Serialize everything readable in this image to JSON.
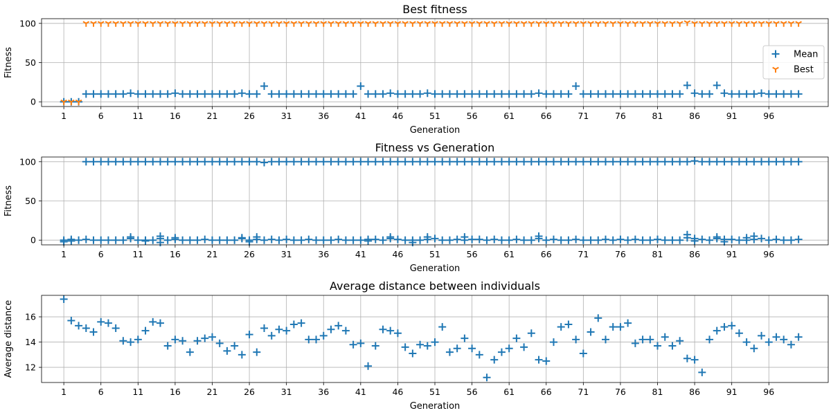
{
  "colors": {
    "mean": "#1f77b4",
    "best": "#ff7f0e",
    "grid": "#b0b0b0"
  },
  "chart_data": [
    {
      "type": "scatter",
      "title": "Best fitness",
      "xlabel": "Generation",
      "ylabel": "Fitness",
      "xticks": [
        1,
        6,
        11,
        16,
        21,
        26,
        31,
        36,
        41,
        46,
        51,
        56,
        61,
        66,
        71,
        76,
        81,
        86,
        91,
        96
      ],
      "yticks": [
        0,
        50,
        100
      ],
      "xlim": [
        -2,
        104
      ],
      "ylim": [
        -6,
        106
      ],
      "grid": true,
      "legend": "center-right",
      "series": [
        {
          "name": "Mean",
          "marker": "plus",
          "x": [
            1,
            2,
            3,
            4,
            5,
            6,
            7,
            8,
            9,
            10,
            11,
            12,
            13,
            14,
            15,
            16,
            17,
            18,
            19,
            20,
            21,
            22,
            23,
            24,
            25,
            26,
            27,
            28,
            29,
            30,
            31,
            32,
            33,
            34,
            35,
            36,
            37,
            38,
            39,
            40,
            41,
            42,
            43,
            44,
            45,
            46,
            47,
            48,
            49,
            50,
            51,
            52,
            53,
            54,
            55,
            56,
            57,
            58,
            59,
            60,
            61,
            62,
            63,
            64,
            65,
            66,
            67,
            68,
            69,
            70,
            71,
            72,
            73,
            74,
            75,
            76,
            77,
            78,
            79,
            80,
            81,
            82,
            83,
            84,
            85,
            86,
            87,
            88,
            89,
            90,
            91,
            92,
            93,
            94,
            95,
            96,
            97,
            98,
            99,
            100
          ],
          "y": [
            0,
            0,
            0,
            10,
            10,
            10,
            10,
            10,
            10,
            11,
            10,
            10,
            10,
            10,
            10,
            11,
            10,
            10,
            10,
            10,
            10,
            10,
            10,
            10,
            11,
            10,
            10,
            20,
            10,
            10,
            10,
            10,
            10,
            10,
            10,
            10,
            10,
            10,
            10,
            10,
            20,
            10,
            10,
            10,
            11,
            10,
            10,
            10,
            10,
            11,
            10,
            10,
            10,
            10,
            10,
            10,
            10,
            10,
            10,
            10,
            10,
            10,
            10,
            10,
            11,
            10,
            10,
            10,
            10,
            20,
            10,
            10,
            10,
            10,
            10,
            10,
            10,
            10,
            10,
            10,
            10,
            10,
            10,
            10,
            21,
            11,
            10,
            10,
            21,
            11,
            10,
            10,
            10,
            10,
            11,
            10,
            10,
            10,
            10,
            10
          ]
        },
        {
          "name": "Best",
          "marker": "tri_down",
          "x": [
            1,
            2,
            3,
            4,
            5,
            6,
            7,
            8,
            9,
            10,
            11,
            12,
            13,
            14,
            15,
            16,
            17,
            18,
            19,
            20,
            21,
            22,
            23,
            24,
            25,
            26,
            27,
            28,
            29,
            30,
            31,
            32,
            33,
            34,
            35,
            36,
            37,
            38,
            39,
            40,
            41,
            42,
            43,
            44,
            45,
            46,
            47,
            48,
            49,
            50,
            51,
            52,
            53,
            54,
            55,
            56,
            57,
            58,
            59,
            60,
            61,
            62,
            63,
            64,
            65,
            66,
            67,
            68,
            69,
            70,
            71,
            72,
            73,
            74,
            75,
            76,
            77,
            78,
            79,
            80,
            81,
            82,
            83,
            84,
            85,
            86,
            87,
            88,
            89,
            90,
            91,
            92,
            93,
            94,
            95,
            96,
            97,
            98,
            99,
            100
          ],
          "y": [
            0,
            0,
            0,
            100,
            100,
            100,
            100,
            100,
            100,
            100,
            100,
            100,
            100,
            100,
            100,
            100,
            100,
            100,
            100,
            100,
            100,
            100,
            100,
            100,
            100,
            100,
            100,
            100,
            100,
            100,
            100,
            100,
            100,
            100,
            100,
            100,
            100,
            100,
            100,
            100,
            100,
            100,
            100,
            100,
            100,
            100,
            100,
            100,
            100,
            100,
            100,
            100,
            100,
            100,
            100,
            100,
            100,
            100,
            100,
            100,
            100,
            100,
            100,
            100,
            100,
            100,
            100,
            100,
            100,
            100,
            100,
            100,
            100,
            100,
            100,
            100,
            100,
            100,
            100,
            100,
            100,
            100,
            100,
            100,
            101,
            100,
            100,
            100,
            100,
            100,
            100,
            100,
            100,
            100,
            100,
            100,
            100,
            100,
            100,
            100
          ]
        }
      ]
    },
    {
      "type": "scatter",
      "title": "Fitness vs Generation",
      "xlabel": "Generation",
      "ylabel": "Fitness",
      "xticks": [
        1,
        6,
        11,
        16,
        21,
        26,
        31,
        36,
        41,
        46,
        51,
        56,
        61,
        66,
        71,
        76,
        81,
        86,
        91,
        96
      ],
      "yticks": [
        0,
        50,
        100
      ],
      "xlim": [
        -2,
        104
      ],
      "ylim": [
        -6,
        106
      ],
      "grid": true,
      "series": [
        {
          "marker": "plus",
          "x": [
            1,
            2,
            3,
            4,
            5,
            6,
            7,
            8,
            9,
            10,
            11,
            12,
            13,
            14,
            15,
            16,
            17,
            18,
            19,
            20,
            21,
            22,
            23,
            24,
            25,
            26,
            27,
            28,
            29,
            30,
            31,
            32,
            33,
            34,
            35,
            36,
            37,
            38,
            39,
            40,
            41,
            42,
            43,
            44,
            45,
            46,
            47,
            48,
            49,
            50,
            51,
            52,
            53,
            54,
            55,
            56,
            57,
            58,
            59,
            60,
            61,
            62,
            63,
            64,
            65,
            66,
            67,
            68,
            69,
            70,
            71,
            72,
            73,
            74,
            75,
            76,
            77,
            78,
            79,
            80,
            81,
            82,
            83,
            84,
            85,
            86,
            87,
            88,
            89,
            90,
            91,
            92,
            93,
            94,
            95,
            96,
            97,
            98,
            99,
            100,
            4,
            5,
            6,
            7,
            8,
            9,
            10,
            11,
            12,
            13,
            14,
            15,
            16,
            17,
            18,
            19,
            20,
            21,
            22,
            23,
            24,
            25,
            26,
            27,
            28,
            29,
            30,
            31,
            32,
            33,
            34,
            35,
            36,
            37,
            38,
            39,
            40,
            41,
            42,
            43,
            44,
            45,
            46,
            47,
            48,
            49,
            50,
            51,
            52,
            53,
            54,
            55,
            56,
            57,
            58,
            59,
            60,
            61,
            62,
            63,
            64,
            65,
            66,
            67,
            68,
            69,
            70,
            71,
            72,
            73,
            74,
            75,
            76,
            77,
            78,
            79,
            80,
            81,
            82,
            83,
            84,
            85,
            86,
            87,
            88,
            89,
            90,
            91,
            92,
            93,
            94,
            95,
            96,
            97,
            98,
            99,
            100,
            10,
            14,
            16,
            25,
            27,
            45,
            50,
            55,
            65,
            85,
            89,
            93,
            94,
            1,
            2,
            12,
            14,
            26,
            42,
            48,
            86,
            90
          ],
          "y": [
            0,
            1,
            0,
            1,
            0,
            0,
            0,
            0,
            0,
            2,
            0,
            0,
            0,
            2,
            0,
            1,
            0,
            0,
            0,
            1,
            0,
            0,
            0,
            0,
            2,
            0,
            1,
            0,
            1,
            0,
            1,
            0,
            0,
            1,
            0,
            0,
            0,
            1,
            0,
            0,
            0,
            1,
            1,
            0,
            2,
            1,
            0,
            0,
            0,
            1,
            2,
            0,
            0,
            1,
            0,
            1,
            1,
            0,
            1,
            0,
            0,
            1,
            0,
            0,
            2,
            0,
            1,
            0,
            0,
            1,
            0,
            0,
            0,
            1,
            0,
            1,
            0,
            1,
            0,
            0,
            1,
            0,
            0,
            0,
            3,
            2,
            1,
            0,
            2,
            1,
            1,
            0,
            0,
            1,
            2,
            0,
            1,
            0,
            0,
            1,
            100,
            100,
            100,
            100,
            100,
            100,
            100,
            100,
            100,
            100,
            100,
            100,
            100,
            100,
            100,
            100,
            100,
            100,
            100,
            100,
            100,
            100,
            100,
            100,
            99,
            100,
            100,
            100,
            100,
            100,
            100,
            100,
            100,
            100,
            100,
            100,
            100,
            100,
            100,
            100,
            100,
            100,
            100,
            100,
            100,
            100,
            100,
            100,
            100,
            100,
            100,
            100,
            100,
            100,
            100,
            100,
            100,
            100,
            100,
            100,
            100,
            100,
            100,
            100,
            100,
            100,
            100,
            100,
            100,
            100,
            100,
            100,
            100,
            100,
            100,
            100,
            100,
            100,
            100,
            100,
            100,
            100,
            101,
            100,
            100,
            100,
            100,
            100,
            100,
            100,
            100,
            100,
            100,
            100,
            100,
            100,
            100,
            4,
            5,
            3,
            3,
            4,
            4,
            4,
            4,
            5,
            7,
            4,
            3,
            5,
            -2,
            -1,
            -1,
            -3,
            -2,
            -1,
            -3,
            -1,
            -2
          ]
        }
      ]
    },
    {
      "type": "scatter",
      "title": "Average distance between individuals",
      "xlabel": "Generation",
      "ylabel": "Average distance",
      "xticks": [
        1,
        6,
        11,
        16,
        21,
        26,
        31,
        36,
        41,
        46,
        51,
        56,
        61,
        66,
        71,
        76,
        81,
        86,
        91,
        96
      ],
      "yticks": [
        12,
        14,
        16
      ],
      "xlim": [
        -2,
        104
      ],
      "ylim": [
        10.8,
        17.7
      ],
      "grid": true,
      "series": [
        {
          "marker": "plus",
          "x": [
            1,
            2,
            3,
            4,
            5,
            6,
            7,
            8,
            9,
            10,
            11,
            12,
            13,
            14,
            15,
            16,
            17,
            18,
            19,
            20,
            21,
            22,
            23,
            24,
            25,
            26,
            27,
            28,
            29,
            30,
            31,
            32,
            33,
            34,
            35,
            36,
            37,
            38,
            39,
            40,
            41,
            42,
            43,
            44,
            45,
            46,
            47,
            48,
            49,
            50,
            51,
            52,
            53,
            54,
            55,
            56,
            57,
            58,
            59,
            60,
            61,
            62,
            63,
            64,
            65,
            66,
            67,
            68,
            69,
            70,
            71,
            72,
            73,
            74,
            75,
            76,
            77,
            78,
            79,
            80,
            81,
            82,
            83,
            84,
            85,
            86,
            87,
            88,
            89,
            90,
            91,
            92,
            93,
            94,
            95,
            96,
            97,
            98,
            99,
            100
          ],
          "y": [
            17.4,
            15.7,
            15.3,
            15.1,
            14.8,
            15.6,
            15.5,
            15.1,
            14.1,
            14.0,
            14.2,
            14.9,
            15.6,
            15.5,
            13.7,
            14.2,
            14.1,
            13.2,
            14.1,
            14.3,
            14.4,
            13.9,
            13.3,
            13.7,
            13.0,
            14.6,
            13.2,
            15.1,
            14.5,
            15.0,
            14.9,
            15.4,
            15.5,
            14.2,
            14.2,
            14.5,
            15.0,
            15.3,
            14.9,
            13.8,
            13.9,
            12.1,
            13.7,
            15.0,
            14.9,
            14.7,
            13.6,
            13.1,
            13.8,
            13.7,
            14.0,
            15.2,
            13.2,
            13.5,
            14.3,
            13.5,
            13.0,
            11.2,
            12.6,
            13.2,
            13.5,
            14.3,
            13.6,
            14.7,
            12.6,
            12.5,
            14.0,
            15.2,
            15.4,
            14.2,
            13.1,
            14.8,
            15.9,
            14.2,
            15.2,
            15.2,
            15.5,
            13.9,
            14.2,
            14.2,
            13.7,
            14.4,
            13.7,
            14.1,
            12.7,
            12.6,
            11.6,
            14.2,
            14.9,
            15.2,
            15.3,
            14.7,
            14.0,
            13.5,
            14.5,
            14.0,
            14.4,
            14.2,
            13.8,
            14.4
          ]
        }
      ]
    }
  ]
}
